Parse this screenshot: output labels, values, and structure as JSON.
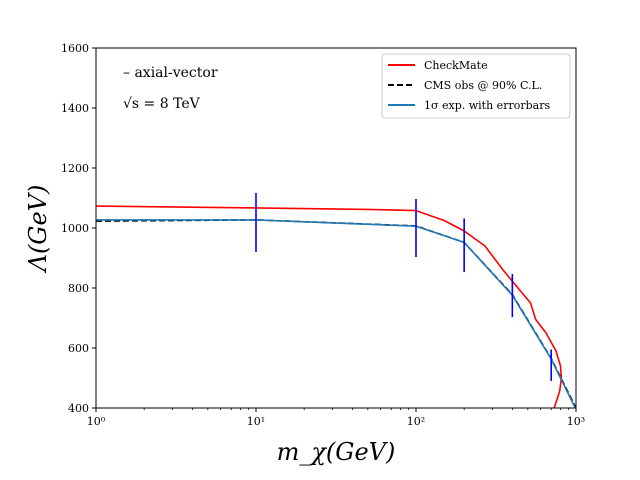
{
  "chart_data": {
    "type": "line",
    "xscale": "log",
    "xlim": [
      1,
      1000
    ],
    "ylim": [
      400,
      1600
    ],
    "xlabel": "m_χ(GeV)",
    "ylabel": "Λ(GeV)",
    "x_ticks": [
      {
        "value": 1,
        "label": "10⁰"
      },
      {
        "value": 10,
        "label": "10¹"
      },
      {
        "value": 100,
        "label": "10²"
      },
      {
        "value": 1000,
        "label": "10³"
      }
    ],
    "y_ticks": [
      400,
      600,
      800,
      1000,
      1200,
      1400,
      1600
    ],
    "annotations": [
      "– axial-vector",
      "√s = 8 TeV"
    ],
    "legend_position": "top-right",
    "series": [
      {
        "name": "CheckMate",
        "color": "#ff0000",
        "style": "solid",
        "points": [
          [
            1,
            1073
          ],
          [
            10,
            1067
          ],
          [
            50,
            1062
          ],
          [
            100,
            1058
          ],
          [
            150,
            1025
          ],
          [
            200,
            990
          ],
          [
            270,
            940
          ],
          [
            350,
            860
          ],
          [
            450,
            790
          ],
          [
            520,
            750
          ],
          [
            560,
            695
          ],
          [
            650,
            650
          ],
          [
            750,
            590
          ],
          [
            800,
            540
          ],
          [
            810,
            500
          ],
          [
            790,
            455
          ],
          [
            730,
            400
          ]
        ]
      },
      {
        "name": "CMS obs @ 90% C.L.",
        "color": "#000000",
        "style": "dashed",
        "points": [
          [
            1,
            1023
          ],
          [
            10,
            1027
          ],
          [
            100,
            1007
          ],
          [
            200,
            952
          ],
          [
            400,
            778
          ],
          [
            700,
            565
          ],
          [
            1000,
            400
          ]
        ]
      },
      {
        "name": "1σ exp. with errorbars",
        "color": "#1f77b4",
        "style": "solid",
        "points": [
          [
            1,
            1027
          ],
          [
            10,
            1027
          ],
          [
            100,
            1006
          ],
          [
            200,
            952
          ],
          [
            400,
            776
          ],
          [
            700,
            563
          ],
          [
            1000,
            395
          ]
        ]
      }
    ],
    "errorbars": {
      "color": "#0000ff",
      "bars": [
        {
          "x": 10,
          "low": 920,
          "high": 1117
        },
        {
          "x": 100,
          "low": 903,
          "high": 1097
        },
        {
          "x": 200,
          "low": 853,
          "high": 1032
        },
        {
          "x": 400,
          "low": 703,
          "high": 847
        },
        {
          "x": 700,
          "low": 490,
          "high": 595
        }
      ]
    }
  }
}
